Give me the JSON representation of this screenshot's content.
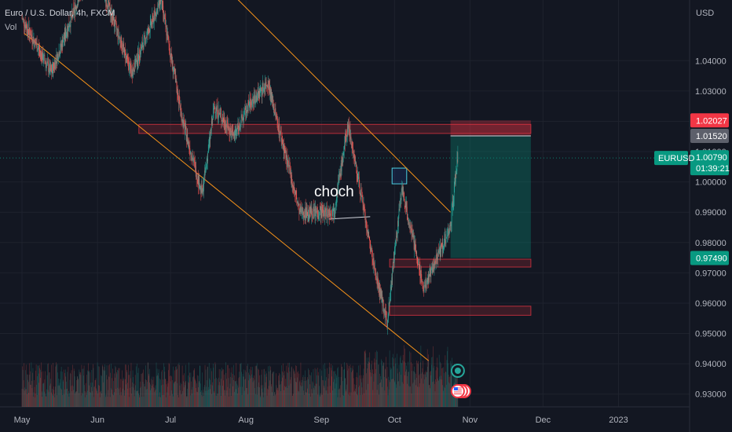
{
  "header": {
    "symbol_title": "Euro / U.S. Dollar, 4h, FXCM",
    "volume_label": "Vol"
  },
  "price_axis": {
    "currency": "USD",
    "ticks": [
      "1.04000",
      "1.03000",
      "1.02000",
      "1.01000",
      "1.00000",
      "0.99000",
      "0.98000",
      "0.97000",
      "0.96000",
      "0.95000",
      "0.94000",
      "0.93000"
    ]
  },
  "time_axis": {
    "ticks": [
      "May",
      "Jun",
      "Jul",
      "Aug",
      "Sep",
      "Oct",
      "Nov",
      "Dec",
      "2023"
    ]
  },
  "price_tags": {
    "stop_loss": "1.02027",
    "entry": "1.01520",
    "symbol": "EURUSD",
    "current_price": "1.00790",
    "countdown": "01:39:21",
    "target": "0.97490"
  },
  "annotation": {
    "label": "choch"
  },
  "colors": {
    "background": "#131722",
    "bull": "#26a69a",
    "bear": "#ef5350",
    "channel": "#f7931a",
    "zone": "#f23645",
    "long_profit": "#089981",
    "stop_tag": "#f23645",
    "entry_tag": "#5d606b",
    "price_tag": "#089981"
  },
  "icons": [
    "event-flag-icon",
    "us-flag-icon"
  ],
  "chart_data": {
    "type": "candlestick",
    "symbol": "EURUSD",
    "timeframe": "4h",
    "y_axis": {
      "min": 0.925,
      "max": 1.052
    },
    "x_axis": {
      "start": "2022-05-01",
      "end": "2023-01-31"
    },
    "price_path": [
      {
        "date": "2022-05-01",
        "price": 1.054
      },
      {
        "date": "2022-05-13",
        "price": 1.036
      },
      {
        "date": "2022-05-30",
        "price": 1.073
      },
      {
        "date": "2022-06-15",
        "price": 1.036
      },
      {
        "date": "2022-06-27",
        "price": 1.06
      },
      {
        "date": "2022-07-06",
        "price": 1.02
      },
      {
        "date": "2022-07-14",
        "price": 0.996
      },
      {
        "date": "2022-07-19",
        "price": 1.025
      },
      {
        "date": "2022-07-27",
        "price": 1.015
      },
      {
        "date": "2022-08-02",
        "price": 1.025
      },
      {
        "date": "2022-08-10",
        "price": 1.033
      },
      {
        "date": "2022-08-12",
        "price": 1.026
      },
      {
        "date": "2022-08-23",
        "price": 0.99
      },
      {
        "date": "2022-09-06",
        "price": 0.99
      },
      {
        "date": "2022-09-12",
        "price": 1.019
      },
      {
        "date": "2022-09-23",
        "price": 0.97
      },
      {
        "date": "2022-09-28",
        "price": 0.954
      },
      {
        "date": "2022-10-04",
        "price": 0.998
      },
      {
        "date": "2022-10-13",
        "price": 0.965
      },
      {
        "date": "2022-10-24",
        "price": 0.985
      },
      {
        "date": "2022-10-27",
        "price": 1.009
      }
    ],
    "current_price": 1.0079,
    "channel": {
      "upper": [
        {
          "date": "2022-06-06",
          "price": 1.1025
        },
        {
          "date": "2022-10-24",
          "price": 0.99
        }
      ],
      "lower": [
        {
          "date": "2022-05-02",
          "price": 1.049
        },
        {
          "date": "2022-10-15",
          "price": 0.941
        }
      ]
    },
    "zones": [
      {
        "from": "2022-06-18",
        "to": "2022-11-26",
        "top": 1.019,
        "bottom": 1.016
      },
      {
        "from": "2022-09-29",
        "to": "2022-11-26",
        "top": 0.9745,
        "bottom": 0.9725
      },
      {
        "from": "2022-09-29",
        "to": "2022-11-26",
        "top": 0.959,
        "bottom": 0.956
      }
    ],
    "choch_box": {
      "from": "2022-09-30",
      "to": "2022-10-06",
      "top": 1.003,
      "bottom": 1.0
    },
    "choch_line": {
      "from": "2022-09-04",
      "to": "2022-09-21",
      "price": 0.988
    },
    "long_position": {
      "from": "2022-10-24",
      "to": "2022-11-26",
      "entry": 1.0152,
      "stop": 1.0203,
      "target": 0.9749
    },
    "volume": {
      "max_date": "2022-10-25"
    }
  }
}
